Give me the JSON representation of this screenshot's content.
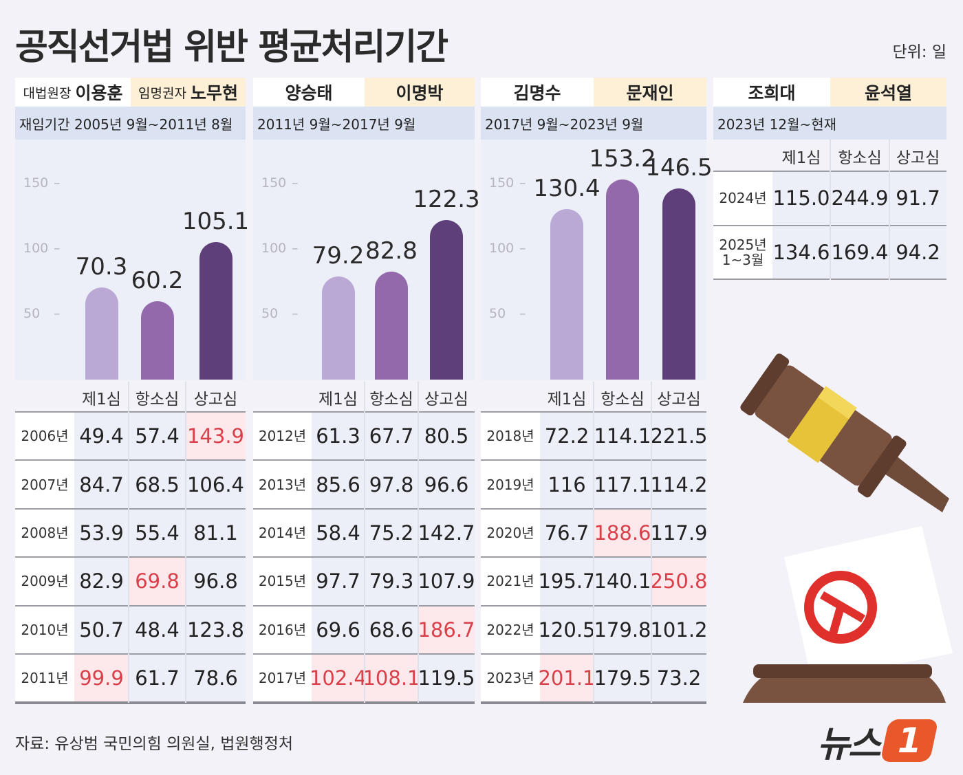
{
  "title": "공직선거법 위반 평균처리기간",
  "unit": "단위: 일",
  "source": "자료: 유상범 국민의힘 의원실, 법원행정처",
  "logo_text": "뉴스1",
  "logo_parts": {
    "word": "뉴스",
    "num": "1"
  },
  "colors": {
    "first": "#b9a9d4",
    "appeal": "#9469ab",
    "supreme": "#5f3f79",
    "highlight_text": "#d8414a",
    "highlight_bg": "#fde9ec",
    "appointer_bg": "#fdf0d6",
    "term_bg": "#dbe3f2"
  },
  "column_headers": [
    "제1심",
    "항소심",
    "상고심"
  ],
  "chart_data": {
    "type": "bar",
    "categories": [
      "제1심",
      "항소심",
      "상고심"
    ],
    "ylim": [
      0,
      150
    ],
    "yticks": [
      "150",
      "100",
      "50"
    ],
    "ytick_values": [
      150,
      100,
      50
    ],
    "series": [
      {
        "name": "이용훈",
        "values": [
          70.3,
          60.2,
          105.1
        ],
        "labels": [
          "70.3",
          "60.2",
          "105.1"
        ]
      },
      {
        "name": "양승태",
        "values": [
          79.2,
          82.8,
          122.3
        ],
        "labels": [
          "79.2",
          "82.8",
          "122.3"
        ]
      },
      {
        "name": "김명수",
        "values": [
          130.4,
          153.2,
          146.5
        ],
        "labels": [
          "130.4",
          "153.2",
          "146.5"
        ]
      }
    ]
  },
  "panels": [
    {
      "justice_title": "대법원장",
      "justice": "이용훈",
      "appointer_title": "임명권자",
      "appointer": "노무현",
      "term": "재임기간 2005년 9월~2011년 8월",
      "rows": [
        {
          "year": "2006년",
          "values": [
            "49.4",
            "57.4",
            "143.9"
          ],
          "highlight": [
            2
          ]
        },
        {
          "year": "2007년",
          "values": [
            "84.7",
            "68.5",
            "106.4"
          ],
          "highlight": []
        },
        {
          "year": "2008년",
          "values": [
            "53.9",
            "55.4",
            "81.1"
          ],
          "highlight": []
        },
        {
          "year": "2009년",
          "values": [
            "82.9",
            "69.8",
            "96.8"
          ],
          "highlight": [
            1
          ]
        },
        {
          "year": "2010년",
          "values": [
            "50.7",
            "48.4",
            "123.8"
          ],
          "highlight": []
        },
        {
          "year": "2011년",
          "values": [
            "99.9",
            "61.7",
            "78.6"
          ],
          "highlight": [
            0
          ]
        }
      ]
    },
    {
      "justice_title": "",
      "justice": "양승태",
      "appointer_title": "",
      "appointer": "이명박",
      "term": "2011년 9월~2017년 9월",
      "rows": [
        {
          "year": "2012년",
          "values": [
            "61.3",
            "67.7",
            "80.5"
          ],
          "highlight": []
        },
        {
          "year": "2013년",
          "values": [
            "85.6",
            "97.8",
            "96.6"
          ],
          "highlight": []
        },
        {
          "year": "2014년",
          "values": [
            "58.4",
            "75.2",
            "142.7"
          ],
          "highlight": []
        },
        {
          "year": "2015년",
          "values": [
            "97.7",
            "79.3",
            "107.9"
          ],
          "highlight": []
        },
        {
          "year": "2016년",
          "values": [
            "69.6",
            "68.6",
            "186.7"
          ],
          "highlight": [
            2
          ]
        },
        {
          "year": "2017년",
          "values": [
            "102.4",
            "108.1",
            "119.5"
          ],
          "highlight": [
            0,
            1
          ]
        }
      ]
    },
    {
      "justice_title": "",
      "justice": "김명수",
      "appointer_title": "",
      "appointer": "문재인",
      "term": "2017년 9월~2023년 9월",
      "rows": [
        {
          "year": "2018년",
          "values": [
            "72.2",
            "114.1",
            "221.5"
          ],
          "highlight": []
        },
        {
          "year": "2019년",
          "values": [
            "116",
            "117.1",
            "114.2"
          ],
          "highlight": []
        },
        {
          "year": "2020년",
          "values": [
            "76.7",
            "188.6",
            "117.9"
          ],
          "highlight": [
            1
          ]
        },
        {
          "year": "2021년",
          "values": [
            "195.7",
            "140.1",
            "250.8"
          ],
          "highlight": [
            2
          ]
        },
        {
          "year": "2022년",
          "values": [
            "120.5",
            "179.8",
            "101.2"
          ],
          "highlight": []
        },
        {
          "year": "2023년",
          "values": [
            "201.1",
            "179.5",
            "73.2"
          ],
          "highlight": [
            0
          ]
        }
      ]
    },
    {
      "justice_title": "",
      "justice": "조희대",
      "appointer_title": "",
      "appointer": "윤석열",
      "term": "2023년 12월~현재",
      "rows": [
        {
          "year": "2024년",
          "values": [
            "115.0",
            "244.9",
            "91.7"
          ],
          "highlight": []
        },
        {
          "year": "2025년\n1~3월",
          "values": [
            "134.6",
            "169.4",
            "94.2"
          ],
          "highlight": []
        }
      ]
    }
  ]
}
